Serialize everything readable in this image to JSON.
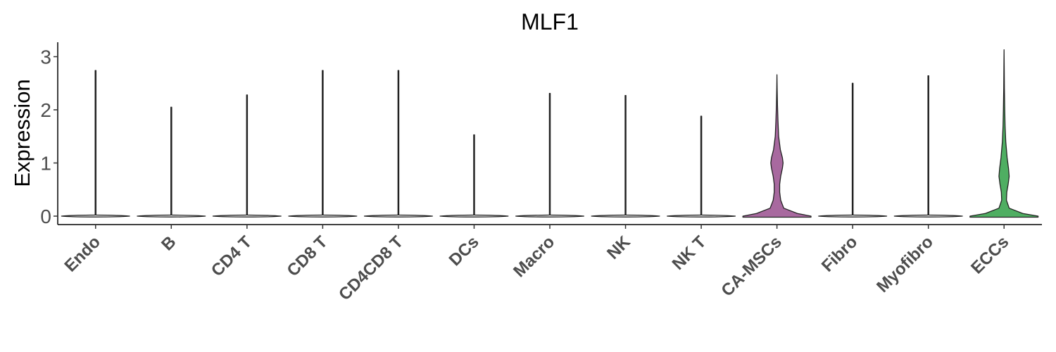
{
  "chart_data": {
    "type": "violin",
    "title": "MLF1",
    "xlabel": "",
    "ylabel": "Expression",
    "ylim": [
      -0.15,
      3.3
    ],
    "yticks": [
      0,
      1,
      2,
      3
    ],
    "grid": false,
    "legend": "none",
    "categories": [
      "Endo",
      "B",
      "CD4 T",
      "CD8 T",
      "CD4CD8 T",
      "DCs",
      "Macro",
      "NK",
      "NK T",
      "CA-MSCs",
      "Fibro",
      "Myofibro",
      "ECCs"
    ],
    "max_values": [
      2.74,
      2.05,
      2.28,
      2.74,
      2.74,
      1.53,
      2.31,
      2.27,
      1.88,
      2.66,
      2.5,
      2.64,
      3.13
    ],
    "fill_colors": [
      "#ffffff",
      "#ffffff",
      "#ffffff",
      "#ffffff",
      "#ffffff",
      "#ffffff",
      "#ffffff",
      "#ffffff",
      "#ffffff",
      "#a8699f",
      "#ffffff",
      "#ffffff",
      "#4fae62"
    ],
    "density_profiles": [
      null,
      null,
      null,
      null,
      null,
      null,
      null,
      null,
      null,
      [
        [
          0,
          1.0
        ],
        [
          0.05,
          0.6
        ],
        [
          0.15,
          0.2
        ],
        [
          0.3,
          0.11
        ],
        [
          0.45,
          0.08
        ],
        [
          0.6,
          0.08
        ],
        [
          0.75,
          0.11
        ],
        [
          0.9,
          0.16
        ],
        [
          1.0,
          0.18
        ],
        [
          1.1,
          0.16
        ],
        [
          1.25,
          0.1
        ],
        [
          1.5,
          0.05
        ],
        [
          1.8,
          0.03
        ],
        [
          2.1,
          0.015
        ],
        [
          2.4,
          0.006
        ],
        [
          2.66,
          0.0
        ]
      ],
      null,
      null,
      [
        [
          0,
          1.0
        ],
        [
          0.05,
          0.55
        ],
        [
          0.15,
          0.15
        ],
        [
          0.3,
          0.07
        ],
        [
          0.45,
          0.08
        ],
        [
          0.6,
          0.12
        ],
        [
          0.75,
          0.15
        ],
        [
          0.9,
          0.13
        ],
        [
          1.1,
          0.09
        ],
        [
          1.4,
          0.05
        ],
        [
          1.7,
          0.03
        ],
        [
          2.0,
          0.02
        ],
        [
          2.4,
          0.01
        ],
        [
          2.8,
          0.005
        ],
        [
          3.13,
          0.0
        ]
      ]
    ]
  }
}
